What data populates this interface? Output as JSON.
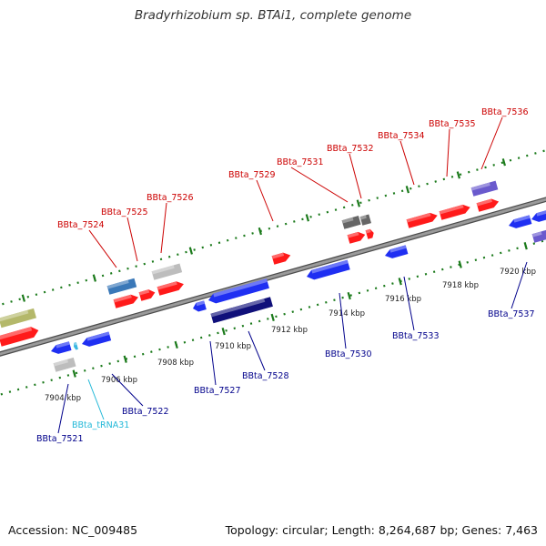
{
  "title": "Bradyrhizobium sp. BTAi1, complete genome",
  "footer": {
    "accession": "Accession: NC_009485",
    "summary": "Topology: circular; Length: 8,264,687 bp; Genes: 7,463"
  },
  "colors": {
    "forward": "#ff1a1a",
    "reverse": "#1f2ff2",
    "forward_label": "#cc0000",
    "reverse_label": "#00008b",
    "trna_label": "#22b8d8",
    "tick": "#1b7a1b",
    "backbone": "#7a7a7a"
  },
  "ticks": [
    {
      "label": "7904 kbp"
    },
    {
      "label": "7906 kbp"
    },
    {
      "label": "7908 kbp"
    },
    {
      "label": "7910 kbp"
    },
    {
      "label": "7912 kbp"
    },
    {
      "label": "7914 kbp"
    },
    {
      "label": "7916 kbp"
    },
    {
      "label": "7918 kbp"
    },
    {
      "label": "7920 kbp"
    }
  ],
  "labels": {
    "forward": [
      "BBta_7524",
      "BBta_7525",
      "BBta_7526",
      "BBta_7529",
      "BBta_7531",
      "BBta_7532",
      "BBta_7534",
      "BBta_7535",
      "BBta_7536"
    ],
    "reverse": [
      "BBta_7521",
      "BBta_tRNA31",
      "BBta_7522",
      "BBta_7527",
      "BBta_7528",
      "BBta_7530",
      "BBta_7533",
      "BBta_7537"
    ]
  }
}
